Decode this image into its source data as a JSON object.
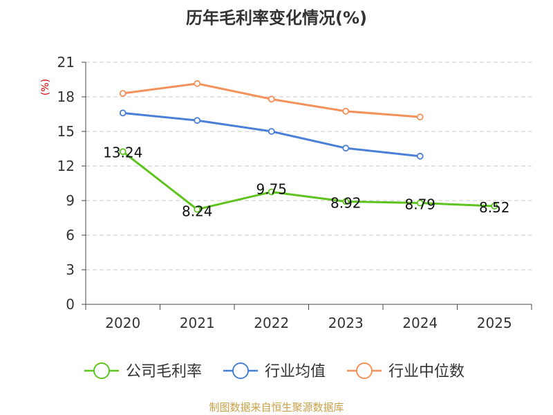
{
  "chart_data": {
    "type": "line",
    "title": "历年毛利率变化情况(%)",
    "unit_label": "(%)",
    "categories": [
      "2020",
      "2021",
      "2022",
      "2023",
      "2024",
      "2025"
    ],
    "ylim": [
      0,
      21
    ],
    "yticks": [
      0,
      3,
      6,
      9,
      12,
      15,
      18,
      21
    ],
    "grid": true,
    "legend_position": "bottom",
    "series": [
      {
        "name": "公司毛利率",
        "color": "#5dc41e",
        "values": [
          13.24,
          8.24,
          9.75,
          8.92,
          8.79,
          8.52
        ],
        "labels": [
          "13.24",
          "8.24",
          "9.75",
          "8.92",
          "8.79",
          "8.52"
        ]
      },
      {
        "name": "行业均值",
        "color": "#4a7fd8",
        "values": [
          16.6,
          15.95,
          15.0,
          13.55,
          12.85,
          null
        ]
      },
      {
        "name": "行业中位数",
        "color": "#f4915a",
        "values": [
          18.3,
          19.15,
          17.8,
          16.75,
          16.25,
          null
        ]
      }
    ],
    "source": "制图数据来自恒生聚源数据库"
  }
}
